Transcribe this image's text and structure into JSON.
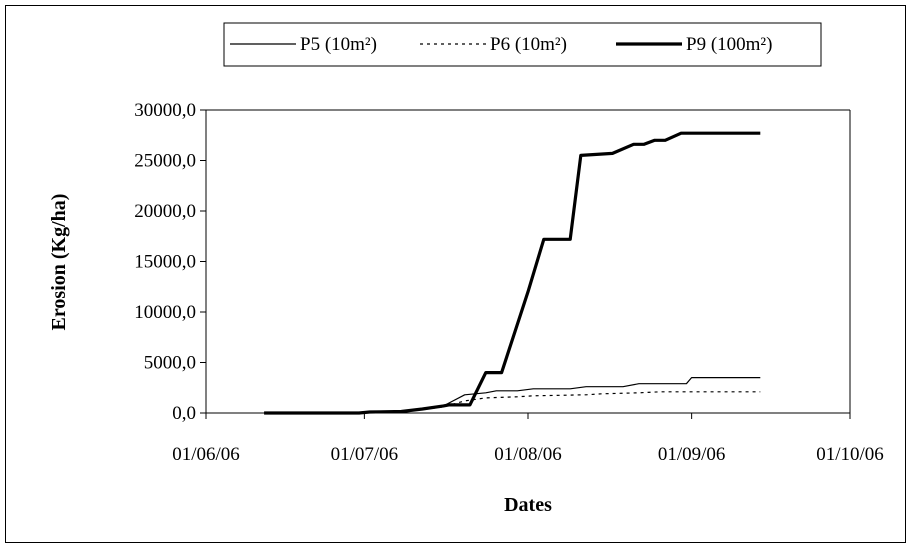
{
  "chart_data": {
    "type": "line",
    "xlabel": "Dates",
    "ylabel": "Erosion (Kg/ha)",
    "x_ticks": [
      "01/06/06",
      "01/07/06",
      "01/08/06",
      "01/09/06",
      "01/10/06"
    ],
    "y_ticks": [
      "0,0",
      "5000,0",
      "10000,0",
      "15000,0",
      "20000,0",
      "25000,0",
      "30000,0"
    ],
    "xlim": [
      "2006-06-01",
      "2006-10-01"
    ],
    "ylim": [
      0,
      30000
    ],
    "grid": false,
    "legend_position": "top",
    "series": [
      {
        "name": "P5 (10m²)",
        "style": "thin-solid",
        "color": "#000000",
        "points": [
          [
            "2006-06-12",
            0
          ],
          [
            "2006-06-30",
            0
          ],
          [
            "2006-07-02",
            150
          ],
          [
            "2006-07-08",
            150
          ],
          [
            "2006-07-12",
            400
          ],
          [
            "2006-07-16",
            700
          ],
          [
            "2006-07-20",
            1800
          ],
          [
            "2006-07-24",
            2000
          ],
          [
            "2006-07-26",
            2200
          ],
          [
            "2006-07-30",
            2200
          ],
          [
            "2006-08-02",
            2400
          ],
          [
            "2006-08-09",
            2400
          ],
          [
            "2006-08-12",
            2600
          ],
          [
            "2006-08-19",
            2600
          ],
          [
            "2006-08-22",
            2900
          ],
          [
            "2006-08-31",
            2900
          ],
          [
            "2006-09-01",
            3500
          ],
          [
            "2006-09-14",
            3500
          ]
        ]
      },
      {
        "name": "P6 (10m²)",
        "style": "dotted",
        "color": "#000000",
        "points": [
          [
            "2006-06-12",
            0
          ],
          [
            "2006-06-30",
            0
          ],
          [
            "2006-07-02",
            150
          ],
          [
            "2006-07-08",
            150
          ],
          [
            "2006-07-12",
            350
          ],
          [
            "2006-07-16",
            600
          ],
          [
            "2006-07-20",
            1200
          ],
          [
            "2006-07-24",
            1500
          ],
          [
            "2006-07-30",
            1600
          ],
          [
            "2006-08-02",
            1700
          ],
          [
            "2006-08-12",
            1800
          ],
          [
            "2006-08-15",
            1900
          ],
          [
            "2006-08-22",
            2000
          ],
          [
            "2006-08-26",
            2100
          ],
          [
            "2006-09-14",
            2100
          ]
        ]
      },
      {
        "name": "P9 (100m²)",
        "style": "thick-solid",
        "color": "#000000",
        "points": [
          [
            "2006-06-12",
            0
          ],
          [
            "2006-06-30",
            0
          ],
          [
            "2006-07-02",
            100
          ],
          [
            "2006-07-08",
            150
          ],
          [
            "2006-07-12",
            400
          ],
          [
            "2006-07-16",
            700
          ],
          [
            "2006-07-17",
            800
          ],
          [
            "2006-07-19",
            800
          ],
          [
            "2006-07-21",
            800
          ],
          [
            "2006-07-24",
            4000
          ],
          [
            "2006-07-27",
            4000
          ],
          [
            "2006-08-01",
            12000
          ],
          [
            "2006-08-04",
            17200
          ],
          [
            "2006-08-09",
            17200
          ],
          [
            "2006-08-11",
            25500
          ],
          [
            "2006-08-17",
            25700
          ],
          [
            "2006-08-21",
            26600
          ],
          [
            "2006-08-23",
            26600
          ],
          [
            "2006-08-25",
            27000
          ],
          [
            "2006-08-27",
            27000
          ],
          [
            "2006-08-30",
            27700
          ],
          [
            "2006-09-14",
            27700
          ]
        ]
      }
    ]
  }
}
